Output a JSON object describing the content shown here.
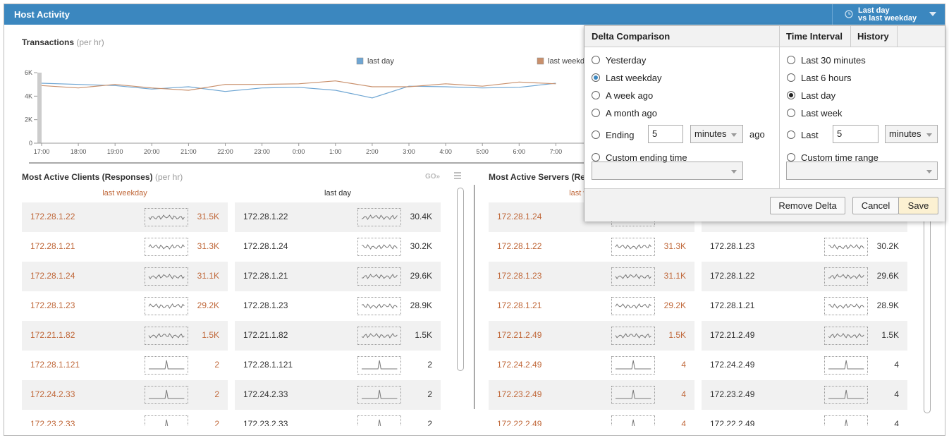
{
  "header": {
    "title": "Host Activity",
    "range": "Last day",
    "compare": "vs last weekday"
  },
  "chart": {
    "type": "line",
    "title": "Transactions",
    "unit": "(per hr)",
    "categories": [
      "17:00",
      "18:00",
      "19:00",
      "20:00",
      "21:00",
      "22:00",
      "23:00",
      "0:00",
      "1:00",
      "2:00",
      "3:00",
      "4:00",
      "5:00",
      "6:00",
      "7:00"
    ],
    "series": [
      {
        "name": "last day",
        "color": "#6fa6d3",
        "values": [
          5100,
          5000,
          4900,
          4600,
          4800,
          4400,
          4700,
          4750,
          4500,
          3850,
          4850,
          4800,
          4700,
          4750,
          5100
        ]
      },
      {
        "name": "last weekday",
        "color": "#c9906c",
        "values": [
          4900,
          4700,
          5000,
          4700,
          4500,
          5000,
          5000,
          5050,
          5300,
          4800,
          4800,
          5050,
          4850,
          5200,
          5050
        ]
      }
    ],
    "ylim": [
      0,
      6000
    ],
    "yticks": [
      0,
      {
        "value": 2000,
        "label": "2K"
      },
      {
        "value": 4000,
        "label": "4K"
      },
      {
        "value": 6000,
        "label": "6K"
      }
    ]
  },
  "clients": {
    "title": "Most Active Clients (Responses)",
    "unit": "(per hr)",
    "go": "GO»",
    "columns": [
      {
        "label": "last weekday",
        "rows": [
          {
            "host": "172.28.1.22",
            "value": "31.5K"
          },
          {
            "host": "172.28.1.21",
            "value": "31.3K"
          },
          {
            "host": "172.28.1.24",
            "value": "31.1K"
          },
          {
            "host": "172.28.1.23",
            "value": "29.2K"
          },
          {
            "host": "172.21.1.82",
            "value": "1.5K"
          },
          {
            "host": "172.28.1.121",
            "value": "2"
          },
          {
            "host": "172.24.2.33",
            "value": "2"
          },
          {
            "host": "172.23.2.33",
            "value": "2"
          }
        ]
      },
      {
        "label": "last day",
        "rows": [
          {
            "host": "172.28.1.22",
            "value": "30.4K"
          },
          {
            "host": "172.28.1.24",
            "value": "30.2K"
          },
          {
            "host": "172.28.1.21",
            "value": "29.6K"
          },
          {
            "host": "172.28.1.23",
            "value": "28.9K"
          },
          {
            "host": "172.21.1.82",
            "value": "1.5K"
          },
          {
            "host": "172.28.1.121",
            "value": "2"
          },
          {
            "host": "172.24.2.33",
            "value": "2"
          },
          {
            "host": "172.23.2.33",
            "value": "2"
          }
        ]
      }
    ]
  },
  "servers": {
    "title": "Most Active Servers (Responses)",
    "columns": [
      {
        "label": "last weekday",
        "rows": [
          {
            "host": "172.28.1.24",
            "value": null
          },
          {
            "host": "172.28.1.22",
            "value": "31.3K"
          },
          {
            "host": "172.28.1.23",
            "value": "31.1K"
          },
          {
            "host": "172.28.1.21",
            "value": "29.2K"
          },
          {
            "host": "172.21.2.49",
            "value": "1.5K"
          },
          {
            "host": "172.24.2.49",
            "value": "4"
          },
          {
            "host": "172.23.2.49",
            "value": "4"
          },
          {
            "host": "172.22.2.49",
            "value": "4"
          }
        ]
      },
      {
        "label": null,
        "rows": [
          {
            "host": null,
            "value": null
          },
          {
            "host": "172.28.1.23",
            "value": "30.2K"
          },
          {
            "host": "172.28.1.22",
            "value": "29.6K"
          },
          {
            "host": "172.28.1.21",
            "value": "28.9K"
          },
          {
            "host": "172.21.2.49",
            "value": "1.5K"
          },
          {
            "host": "172.24.2.49",
            "value": "4"
          },
          {
            "host": "172.23.2.49",
            "value": "4"
          },
          {
            "host": "172.22.2.49",
            "value": "4"
          }
        ]
      }
    ]
  },
  "popup": {
    "delta": {
      "title": "Delta Comparison",
      "options": [
        "Yesterday",
        "Last weekday",
        "A week ago",
        "A month ago",
        "Ending",
        "Custom ending time"
      ],
      "selected": 1,
      "ending_value": "5",
      "ending_unit": "minutes",
      "ending_suffix": "ago"
    },
    "interval": {
      "title": "Time Interval",
      "options": [
        "Last 30 minutes",
        "Last 6 hours",
        "Last day",
        "Last week",
        "Last",
        "Custom time range"
      ],
      "selected": 2,
      "last_value": "5",
      "last_unit": "minutes"
    },
    "history": "History",
    "buttons": [
      "Remove Delta",
      "Cancel",
      "Save"
    ]
  }
}
